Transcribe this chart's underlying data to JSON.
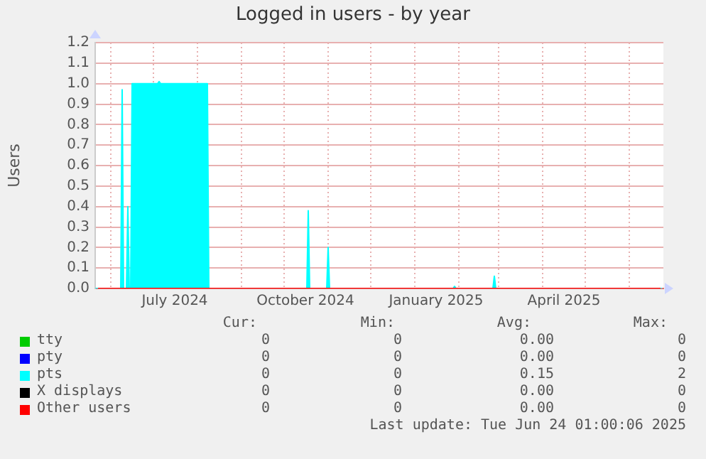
{
  "chart_data": {
    "type": "area",
    "title": "Logged in users - by year",
    "ylabel": "Users",
    "xlim": [
      "2024-05-21",
      "2025-06-25"
    ],
    "xticks": [
      {
        "value": "2024-06-01",
        "label": null
      },
      {
        "value": "2024-07-01",
        "label": null
      },
      {
        "value": "2024-07-16",
        "label": "July 2024"
      },
      {
        "value": "2024-08-01",
        "label": null
      },
      {
        "value": "2024-09-01",
        "label": null
      },
      {
        "value": "2024-10-01",
        "label": null
      },
      {
        "value": "2024-10-16",
        "label": "October 2024"
      },
      {
        "value": "2024-11-01",
        "label": null
      },
      {
        "value": "2024-12-01",
        "label": null
      },
      {
        "value": "2025-01-01",
        "label": null
      },
      {
        "value": "2025-01-16",
        "label": "January 2025"
      },
      {
        "value": "2025-02-01",
        "label": null
      },
      {
        "value": "2025-03-01",
        "label": null
      },
      {
        "value": "2025-04-01",
        "label": null
      },
      {
        "value": "2025-04-16",
        "label": "April 2025"
      },
      {
        "value": "2025-05-01",
        "label": null
      },
      {
        "value": "2025-06-01",
        "label": null
      }
    ],
    "ylim": [
      0,
      1.2
    ],
    "yticks": [
      {
        "value": 0,
        "label": "0.0"
      },
      0.1,
      0.2,
      0.3,
      0.4,
      0.5,
      0.6,
      0.7,
      0.8,
      0.9,
      {
        "value": 1,
        "label": "1.0"
      },
      1.1,
      1.2
    ],
    "grid": true,
    "legend": "bottom",
    "series": [
      {
        "name": "tty",
        "color": "#00cc00"
      },
      {
        "name": "pty",
        "color": "#0000ff"
      },
      {
        "name": "pts",
        "color": "#00ffff",
        "x": [
          "2024-05-21",
          "2024-06-08",
          "2024-06-09",
          "2024-06-10",
          "2024-06-12",
          "2024-06-13",
          "2024-06-14",
          "2024-06-15",
          "2024-06-16",
          "2024-07-04",
          "2024-07-05",
          "2024-07-06",
          "2024-08-08",
          "2024-08-09",
          "2024-10-17",
          "2024-10-18",
          "2024-10-19",
          "2024-10-31",
          "2024-11-01",
          "2024-11-02",
          "2025-01-28",
          "2025-01-29",
          "2025-01-30",
          "2025-02-25",
          "2025-02-26",
          "2025-02-27",
          "2025-06-24"
        ],
        "values": [
          0,
          0,
          0.97,
          0,
          0,
          0.4,
          0,
          0,
          1.0,
          1.0,
          1.01,
          1.0,
          1.0,
          0,
          0,
          0.38,
          0,
          0,
          0.2,
          0,
          0,
          0.01,
          0,
          0,
          0.06,
          0,
          0
        ]
      },
      {
        "name": "X displays",
        "color": "#000000"
      },
      {
        "name": "Other users",
        "type": "line",
        "color": "#ff0000",
        "x": [
          "2024-05-23",
          "2025-06-23"
        ],
        "values": [
          0,
          0
        ]
      }
    ],
    "annotations": [
      "Cur:",
      "Min:",
      "Avg:",
      "Max:",
      "0",
      "0",
      "0.00",
      "0",
      "0",
      "0",
      "0.00",
      "0",
      "0",
      "0",
      "0.15",
      "2",
      "0",
      "0",
      "0.00",
      "0",
      "0",
      "0",
      "0.00",
      "0",
      "Last update: Tue Jun 24 01:00:06 2025"
    ]
  }
}
